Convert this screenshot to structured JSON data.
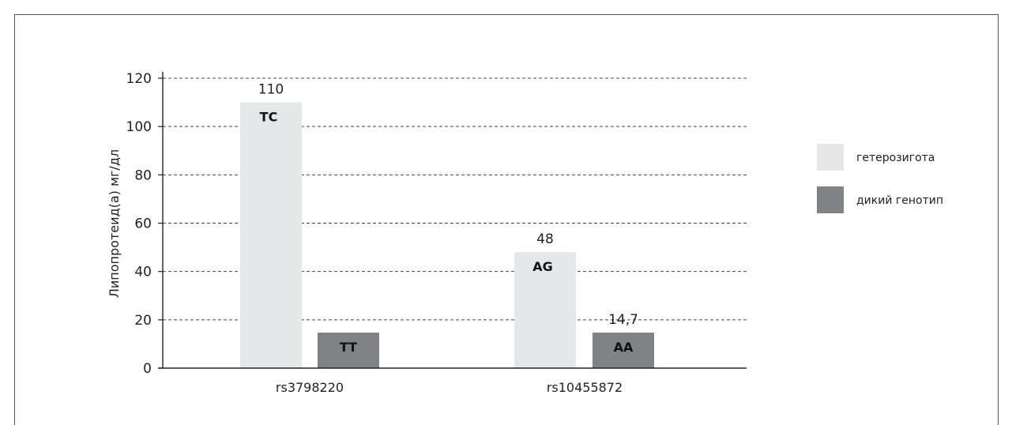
{
  "chart_data": {
    "type": "bar",
    "categories": [
      "rs3798220",
      "rs10455872"
    ],
    "ylabel": "Липопротеид(а) мг/дл",
    "xlabel": "",
    "ylim": [
      0,
      120
    ],
    "yticks": [
      "0",
      "20",
      "40",
      "60",
      "80",
      "100",
      "120"
    ],
    "grid": true,
    "legend_position": "right",
    "series": [
      {
        "name": "гетерозигота",
        "color": "#e6e7e8",
        "values": [
          110,
          48
        ],
        "value_labels": [
          "110",
          "48"
        ],
        "genotypes": [
          "TC",
          "AG"
        ]
      },
      {
        "name": "дикий генотип",
        "color": "#808285",
        "values": [
          14.7,
          14.7
        ],
        "value_labels": [
          "",
          "14,7"
        ],
        "genotypes": [
          "TT",
          "AA"
        ]
      }
    ]
  }
}
